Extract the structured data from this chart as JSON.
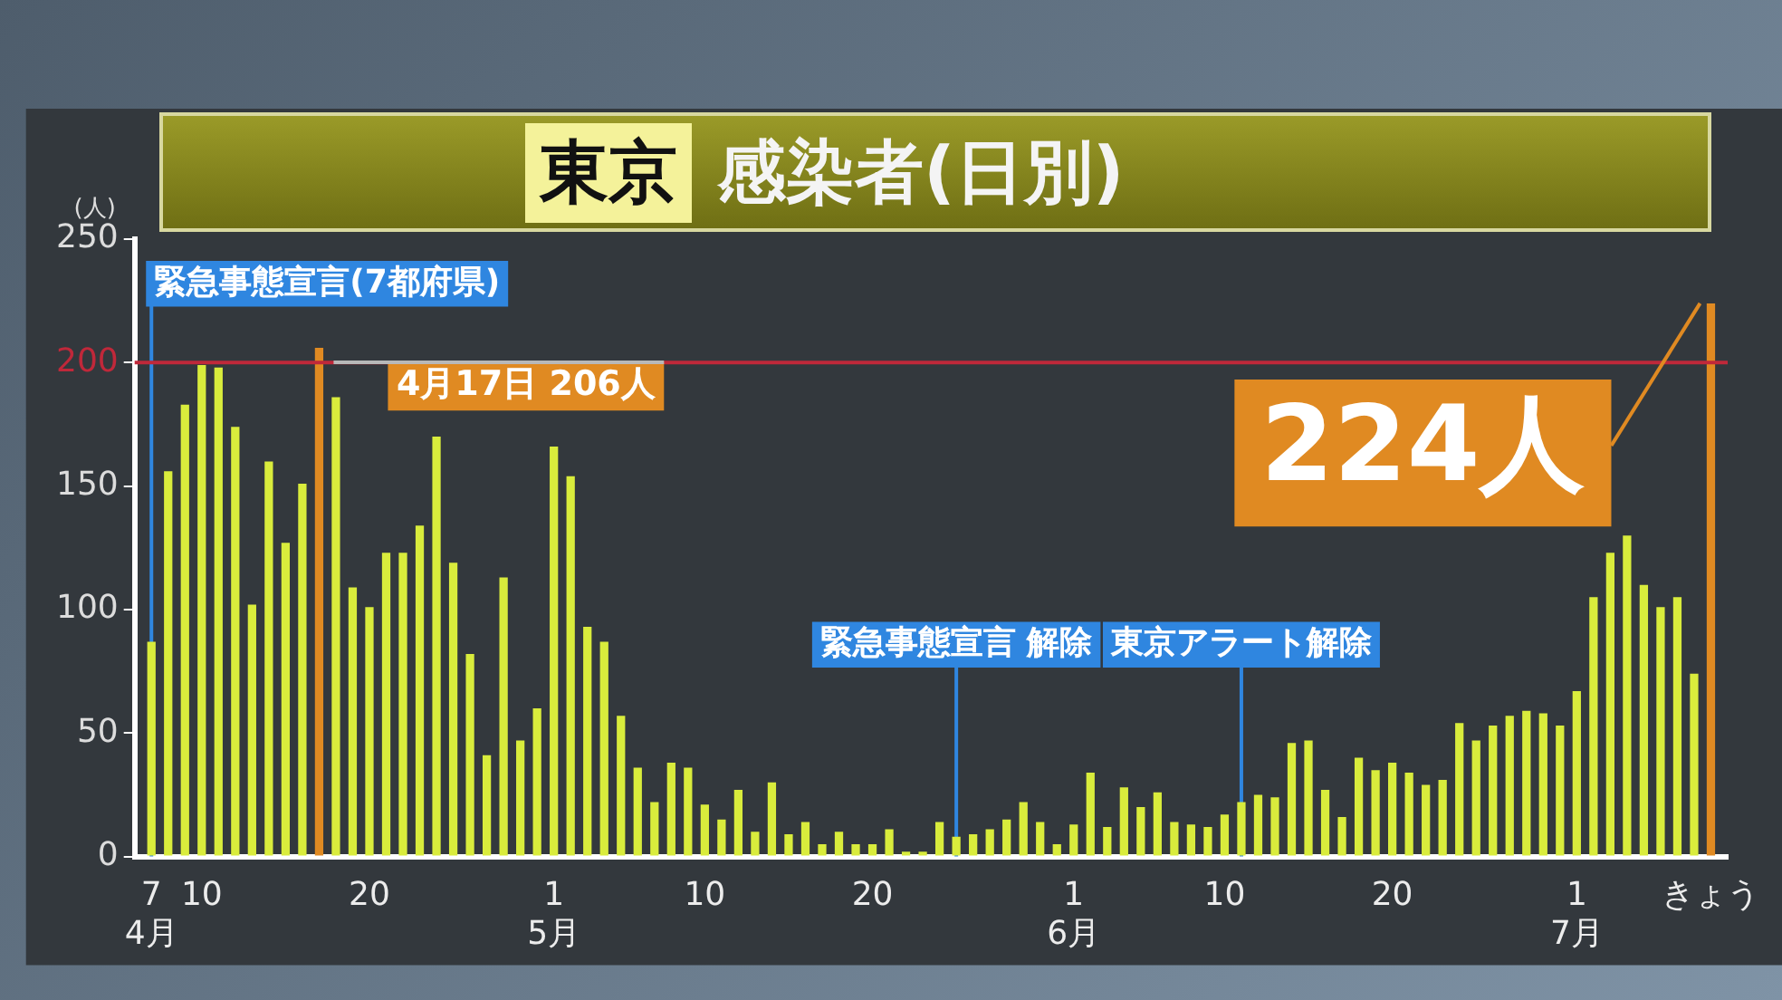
{
  "chart_data": {
    "type": "bar",
    "title": "東京 感染者(日別)",
    "ylabel": "(人)",
    "x": [
      "--04-07",
      "--04-08",
      "--04-09",
      "--04-10",
      "--04-11",
      "--04-12",
      "--04-13",
      "--04-14",
      "--04-15",
      "--04-16",
      "--04-17",
      "--04-18",
      "--04-19",
      "--04-20",
      "--04-21",
      "--04-22",
      "--04-23",
      "--04-24",
      "--04-25",
      "--04-26",
      "--04-27",
      "--04-28",
      "--04-29",
      "--04-30",
      "--05-01",
      "--05-02",
      "--05-03",
      "--05-04",
      "--05-05",
      "--05-06",
      "--05-07",
      "--05-08",
      "--05-09",
      "--05-10",
      "--05-11",
      "--05-12",
      "--05-13",
      "--05-14",
      "--05-15",
      "--05-16",
      "--05-17",
      "--05-18",
      "--05-19",
      "--05-20",
      "--05-21",
      "--05-22",
      "--05-23",
      "--05-24",
      "--05-25",
      "--05-26",
      "--05-27",
      "--05-28",
      "--05-29",
      "--05-30",
      "--05-31",
      "--06-01",
      "--06-02",
      "--06-03",
      "--06-04",
      "--06-05",
      "--06-06",
      "--06-07",
      "--06-08",
      "--06-09",
      "--06-10",
      "--06-11",
      "--06-12",
      "--06-13",
      "--06-14",
      "--06-15",
      "--06-16",
      "--06-17",
      "--06-18",
      "--06-19",
      "--06-20",
      "--06-21",
      "--06-22",
      "--06-23",
      "--06-24",
      "--06-25",
      "--06-26",
      "--06-27",
      "--06-28",
      "--06-29",
      "--06-30",
      "--07-01",
      "--07-02",
      "--07-03",
      "--07-04",
      "--07-05",
      "--07-06",
      "--07-07",
      "--07-08",
      "--07-09"
    ],
    "values": [
      87,
      156,
      183,
      199,
      198,
      174,
      102,
      160,
      127,
      151,
      206,
      186,
      109,
      101,
      123,
      123,
      134,
      170,
      119,
      82,
      41,
      113,
      47,
      60,
      166,
      154,
      93,
      87,
      57,
      36,
      22,
      38,
      36,
      21,
      15,
      27,
      10,
      30,
      9,
      14,
      5,
      10,
      5,
      5,
      11,
      2,
      2,
      14,
      8,
      9,
      11,
      15,
      22,
      14,
      5,
      13,
      34,
      12,
      28,
      20,
      26,
      14,
      13,
      12,
      17,
      22,
      25,
      24,
      46,
      47,
      27,
      16,
      40,
      35,
      38,
      34,
      29,
      31,
      54,
      47,
      53,
      57,
      59,
      58,
      53,
      67,
      105,
      123,
      130,
      110,
      101,
      105,
      74,
      224
    ],
    "colors": [
      "#d9ec3c",
      "#d9ec3c",
      "#d9ec3c",
      "#d9ec3c",
      "#d9ec3c",
      "#d9ec3c",
      "#d9ec3c",
      "#d9ec3c",
      "#d9ec3c",
      "#d9ec3c",
      "#e08a22",
      "#d9ec3c",
      "#d9ec3c",
      "#d9ec3c",
      "#d9ec3c",
      "#d9ec3c",
      "#d9ec3c",
      "#d9ec3c",
      "#d9ec3c",
      "#d9ec3c",
      "#d9ec3c",
      "#d9ec3c",
      "#d9ec3c",
      "#d9ec3c",
      "#d9ec3c",
      "#d9ec3c",
      "#d9ec3c",
      "#d9ec3c",
      "#d9ec3c",
      "#d9ec3c",
      "#d9ec3c",
      "#d9ec3c",
      "#d9ec3c",
      "#d9ec3c",
      "#d9ec3c",
      "#d9ec3c",
      "#d9ec3c",
      "#d9ec3c",
      "#d9ec3c",
      "#d9ec3c",
      "#d9ec3c",
      "#d9ec3c",
      "#d9ec3c",
      "#d9ec3c",
      "#d9ec3c",
      "#d9ec3c",
      "#d9ec3c",
      "#d9ec3c",
      "#d9ec3c",
      "#d9ec3c",
      "#d9ec3c",
      "#d9ec3c",
      "#d9ec3c",
      "#d9ec3c",
      "#d9ec3c",
      "#d9ec3c",
      "#d9ec3c",
      "#d9ec3c",
      "#d9ec3c",
      "#d9ec3c",
      "#d9ec3c",
      "#d9ec3c",
      "#d9ec3c",
      "#d9ec3c",
      "#d9ec3c",
      "#d9ec3c",
      "#d9ec3c",
      "#d9ec3c",
      "#d9ec3c",
      "#d9ec3c",
      "#d9ec3c",
      "#d9ec3c",
      "#d9ec3c",
      "#d9ec3c",
      "#d9ec3c",
      "#d9ec3c",
      "#d9ec3c",
      "#d9ec3c",
      "#d9ec3c",
      "#d9ec3c",
      "#d9ec3c",
      "#d9ec3c",
      "#d9ec3c",
      "#d9ec3c",
      "#d9ec3c",
      "#d9ec3c",
      "#d9ec3c",
      "#d9ec3c",
      "#d9ec3c",
      "#d9ec3c",
      "#d9ec3c",
      "#d9ec3c",
      "#d9ec3c",
      "#e08a22"
    ],
    "xticks": [
      {
        "value": "--04-07",
        "label": "7\n4月"
      },
      {
        "value": "--04-10",
        "label": "10"
      },
      {
        "value": "--04-20",
        "label": "20"
      },
      {
        "value": "--05-01",
        "label": "1\n5月"
      },
      {
        "value": "--05-10",
        "label": "10"
      },
      {
        "value": "--05-20",
        "label": "20"
      },
      {
        "value": "--06-01",
        "label": "1\n6月"
      },
      {
        "value": "--06-10",
        "label": "10"
      },
      {
        "value": "--06-20",
        "label": "20"
      },
      {
        "value": "--07-01",
        "label": "1\n7月"
      },
      {
        "value": "--07-09",
        "label": "きょう"
      }
    ],
    "xlim": [
      "--04-06",
      "--07-10"
    ],
    "ylim": [
      0,
      250
    ],
    "yticks": [
      0,
      50,
      100,
      150,
      200,
      250
    ],
    "ref_lines": [
      {
        "axis": "y",
        "value": 200,
        "color": "#c0283a"
      },
      {
        "axis": "x",
        "value": "--04-07",
        "label": "緊急事態宣言(7都府県)",
        "color": "#2f86e0"
      },
      {
        "axis": "x",
        "value": "--05-25",
        "label": "緊急事態宣言 解除",
        "color": "#2f86e0"
      },
      {
        "axis": "x",
        "value": "--06-11",
        "label": "東京アラート解除",
        "color": "#2f86e0"
      }
    ],
    "annotations": [
      {
        "text": "4月17日 206人",
        "x": "--04-17",
        "y": 206
      },
      {
        "text": "224人",
        "x": "--07-09",
        "y": 224
      }
    ]
  }
}
